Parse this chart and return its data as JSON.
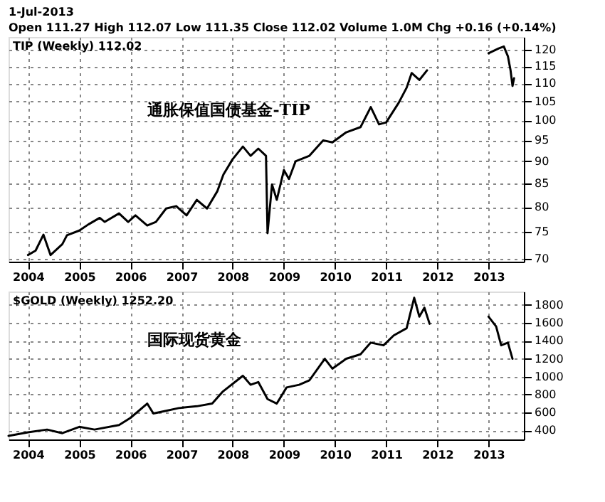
{
  "chart_data": [
    {
      "type": "line",
      "title": "1-Jul-2013",
      "subtitle": "Open 111.27 High 112.07 Low 111.35 Close 112.02 Volume 1.0M Chg +0.16 (+0.14%)",
      "annotations": [
        "通胀保值国债基金-TIP"
      ],
      "x": [
        "2004-01-01",
        "2004-02-24",
        "2004-04-20",
        "2004-06-10",
        "2004-09-02",
        "2004-10-05",
        "2005-01-01",
        "2005-03-07",
        "2005-05-27",
        "2005-07-02",
        "2005-10-12",
        "2005-12-16",
        "2006-02-06",
        "2006-05-01",
        "2006-07-02",
        "2006-09-13",
        "2006-11-24",
        "2007-02-06",
        "2007-04-20",
        "2007-07-02",
        "2007-09-13",
        "2007-10-27",
        "2008-01-01",
        "2008-03-14",
        "2008-05-08",
        "2008-07-02",
        "2008-08-26",
        "2008-09-06",
        "2008-10-08",
        "2008-11-11",
        "2009-01-01",
        "2009-02-06",
        "2009-03-25",
        "2009-07-02",
        "2009-10-08",
        "2009-12-13",
        "2010-03-22",
        "2010-07-02",
        "2010-09-13",
        "2010-11-11",
        "2011-01-01",
        "2011-04-01",
        "2011-05-27",
        "2011-07-02",
        "2011-08-26",
        "2011-10-20",
        "2012-06-01",
        "2013-01-01",
        "2013-03-14",
        "2013-04-20",
        "2013-05-19",
        "2013-06-07",
        "2013-06-21",
        "2013-07-02"
      ],
      "series": [
        {
          "name": "TIP (Weekly) 112.02",
          "color": "#000000",
          "values": [
            70.7,
            71.5,
            74.5,
            70.7,
            72.7,
            74.4,
            75.3,
            76.5,
            77.8,
            77,
            78.7,
            77,
            78.3,
            76.3,
            77,
            79.7,
            80.2,
            78.3,
            81.5,
            79.7,
            83.3,
            87,
            90.5,
            93.5,
            91.3,
            93,
            91.3,
            74.8,
            84.8,
            81.5,
            88,
            86,
            90,
            91.3,
            95,
            94.5,
            97,
            98.3,
            103.5,
            99,
            99.5,
            104.7,
            108.8,
            113,
            111,
            113.8,
            null,
            118.9,
            120.4,
            121,
            118,
            113.8,
            109.3,
            111.5
          ]
        }
      ],
      "xlim": [
        "2003-08-15",
        "2013-09-10"
      ],
      "xticks": [
        {
          "value": "2004-01-01",
          "label": "2004"
        },
        {
          "value": "2005-01-01",
          "label": "2005"
        },
        {
          "value": "2006-01-01",
          "label": "2006"
        },
        {
          "value": "2007-01-01",
          "label": "2007"
        },
        {
          "value": "2008-01-01",
          "label": "2008"
        },
        {
          "value": "2009-01-01",
          "label": "2009"
        },
        {
          "value": "2010-01-01",
          "label": "2010"
        },
        {
          "value": "2011-01-01",
          "label": "2011"
        },
        {
          "value": "2012-01-01",
          "label": "2012"
        },
        {
          "value": "2013-01-01",
          "label": "2013"
        }
      ],
      "ylim": [
        69.5,
        124
      ],
      "yticks": [
        70,
        75,
        80,
        85,
        90,
        95,
        100,
        105,
        110,
        115,
        120
      ],
      "log": "y",
      "grid": true
    },
    {
      "type": "line",
      "annotations": [
        "国际现货黄金"
      ],
      "x": [
        "2003-08-15",
        "2004-01-01",
        "2004-05-16",
        "2004-09-02",
        "2005-01-01",
        "2005-04-20",
        "2005-10-12",
        "2006-01-01",
        "2006-05-01",
        "2006-06-14",
        "2006-09-13",
        "2006-12-13",
        "2007-04-20",
        "2007-08-08",
        "2007-10-20",
        "2008-03-14",
        "2008-05-08",
        "2008-07-02",
        "2008-09-06",
        "2008-11-11",
        "2009-01-20",
        "2009-04-20",
        "2009-07-02",
        "2009-10-20",
        "2009-12-13",
        "2010-03-22",
        "2010-07-02",
        "2010-09-13",
        "2010-12-13",
        "2011-02-24",
        "2011-05-27",
        "2011-07-20",
        "2011-08-26",
        "2011-10-01",
        "2011-11-07",
        "2012-06-01",
        "2013-01-01",
        "2013-02-24",
        "2013-04-01",
        "2013-05-19",
        "2013-06-21"
      ],
      "series": [
        {
          "name": "$GOLD (Weekly) 1252.20",
          "color": "#000000",
          "values": [
            340,
            380,
            410,
            370,
            440,
            410,
            460,
            540,
            700,
            590,
            620,
            650,
            670,
            700,
            830,
            1010,
            910,
            940,
            750,
            700,
            880,
            910,
            960,
            1200,
            1090,
            1200,
            1250,
            1380,
            1350,
            1460,
            1540,
            1880,
            1670,
            1770,
            1590,
            null,
            1670,
            1560,
            1350,
            1380,
            1200
          ]
        }
      ],
      "xlim": [
        "2003-08-15",
        "2013-09-10"
      ],
      "xticks": [
        {
          "value": "2004-01-01",
          "label": "2004"
        },
        {
          "value": "2005-01-01",
          "label": "2005"
        },
        {
          "value": "2006-01-01",
          "label": "2006"
        },
        {
          "value": "2007-01-01",
          "label": "2007"
        },
        {
          "value": "2008-01-01",
          "label": "2008"
        },
        {
          "value": "2009-01-01",
          "label": "2009"
        },
        {
          "value": "2010-01-01",
          "label": "2010"
        },
        {
          "value": "2011-01-01",
          "label": "2011"
        },
        {
          "value": "2012-01-01",
          "label": "2012"
        },
        {
          "value": "2013-01-01",
          "label": "2013"
        }
      ],
      "ylim": [
        300,
        1950
      ],
      "yticks": [
        400,
        600,
        800,
        1000,
        1200,
        1400,
        1600,
        1800
      ],
      "grid": true
    }
  ]
}
